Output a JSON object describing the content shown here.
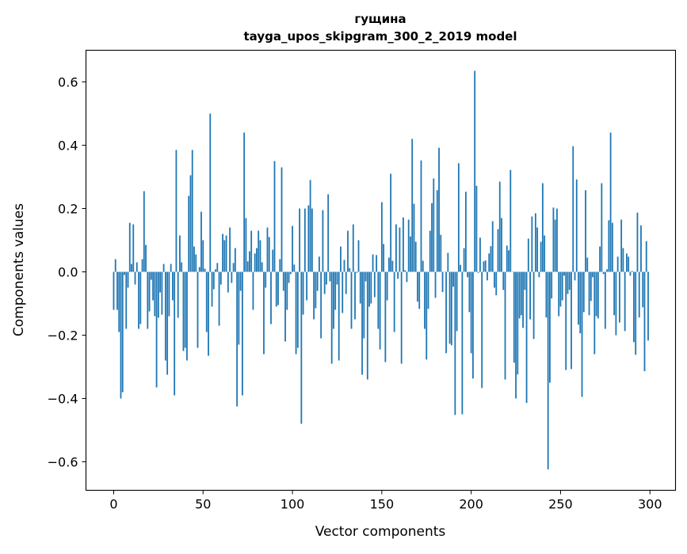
{
  "chart_data": {
    "type": "bar",
    "title": "гущина",
    "subtitle": "tayga_upos_skipgram_300_2_2019 model",
    "xlabel": "Vector components",
    "ylabel": "Components values",
    "xlim": [
      -15.5,
      314.3
    ],
    "ylim": [
      -0.69,
      0.7
    ],
    "xticks": [
      0,
      50,
      100,
      150,
      200,
      250,
      300
    ],
    "xtick_labels": [
      "0",
      "50",
      "100",
      "150",
      "200",
      "250",
      "300"
    ],
    "yticks": [
      -0.6,
      -0.4,
      -0.2,
      0.0,
      0.2,
      0.4,
      0.6
    ],
    "ytick_labels": [
      "−0.6",
      "−0.4",
      "−0.2",
      "0.0",
      "0.2",
      "0.4",
      "0.6"
    ],
    "grid": false,
    "color": "#1f77b4",
    "values": [
      -0.12,
      0.04,
      -0.12,
      -0.19,
      -0.4,
      -0.38,
      -0.01,
      -0.18,
      -0.05,
      0.155,
      0.025,
      0.15,
      -0.04,
      0.03,
      -0.18,
      -0.165,
      0.04,
      0.255,
      0.085,
      -0.18,
      -0.125,
      -0.025,
      -0.09,
      -0.14,
      -0.365,
      -0.145,
      -0.065,
      -0.135,
      0.025,
      -0.28,
      -0.325,
      -0.14,
      0.025,
      -0.09,
      -0.39,
      0.385,
      -0.145,
      0.115,
      0.03,
      -0.25,
      -0.24,
      -0.28,
      0.24,
      0.305,
      0.385,
      0.08,
      0.055,
      -0.24,
      0.015,
      0.19,
      0.1,
      0.01,
      -0.19,
      -0.265,
      0.5,
      -0.11,
      -0.055,
      0.008,
      0.028,
      -0.17,
      -0.04,
      0.12,
      0.1,
      0.115,
      -0.065,
      0.14,
      -0.035,
      0.028,
      0.075,
      -0.425,
      -0.23,
      -0.06,
      -0.39,
      0.44,
      0.17,
      0.033,
      0.065,
      0.13,
      -0.12,
      0.058,
      0.075,
      0.13,
      0.1,
      0.03,
      -0.26,
      -0.05,
      0.14,
      0.11,
      -0.165,
      0.07,
      0.35,
      -0.11,
      -0.105,
      0.04,
      0.33,
      -0.06,
      -0.22,
      -0.12,
      -0.035,
      -0.007,
      0.145,
      0.023,
      -0.26,
      -0.24,
      0.2,
      -0.48,
      -0.135,
      0.2,
      -0.09,
      0.21,
      0.29,
      0.2,
      -0.15,
      -0.115,
      -0.06,
      0.048,
      -0.21,
      0.195,
      -0.07,
      -0.04,
      0.245,
      -0.03,
      -0.29,
      -0.18,
      -0.12,
      -0.04,
      -0.28,
      0.08,
      -0.13,
      0.038,
      -0.07,
      0.13,
      0.012,
      -0.18,
      0.15,
      -0.15,
      -0.003,
      0.1,
      -0.1,
      -0.325,
      -0.21,
      -0.03,
      -0.34,
      -0.11,
      -0.1,
      0.055,
      -0.08,
      0.053,
      -0.18,
      -0.245,
      0.22,
      0.088,
      -0.285,
      -0.09,
      0.045,
      0.31,
      0.035,
      -0.19,
      0.15,
      -0.022,
      0.14,
      -0.29,
      0.172,
      0.005,
      -0.032,
      0.165,
      0.112,
      0.42,
      0.215,
      0.095,
      -0.094,
      -0.117,
      0.352,
      0.035,
      -0.18,
      -0.277,
      -0.117,
      0.13,
      0.217,
      0.295,
      -0.082,
      0.258,
      0.392,
      0.117,
      -0.064,
      0.0,
      -0.257,
      0.06,
      -0.227,
      -0.232,
      -0.047,
      -0.452,
      -0.187,
      0.343,
      0.022,
      -0.45,
      0.075,
      0.253,
      -0.017,
      -0.127,
      -0.257,
      -0.337,
      0.635,
      0.272,
      -0.003,
      0.108,
      -0.367,
      0.033,
      0.036,
      -0.027,
      0.058,
      0.081,
      0.16,
      -0.05,
      -0.074,
      0.135,
      0.285,
      0.17,
      -0.057,
      -0.34,
      0.083,
      0.068,
      0.322,
      0.0,
      -0.287,
      -0.4,
      -0.324,
      -0.147,
      -0.137,
      -0.177,
      -0.057,
      -0.414,
      0.105,
      -0.15,
      0.175,
      -0.212,
      0.185,
      0.14,
      -0.017,
      0.095,
      0.28,
      0.115,
      -0.144,
      -0.624,
      -0.35,
      -0.084,
      0.203,
      0.165,
      0.2,
      -0.14,
      -0.11,
      -0.09,
      -0.012,
      -0.31,
      -0.07,
      -0.057,
      -0.307,
      0.397,
      -0.027,
      0.292,
      -0.167,
      -0.194,
      -0.395,
      -0.127,
      0.258,
      0.045,
      -0.137,
      -0.092,
      -0.017,
      -0.26,
      -0.14,
      -0.147,
      0.08,
      0.28,
      -0.007,
      -0.18,
      0.008,
      0.163,
      0.44,
      0.155,
      -0.137,
      -0.2,
      0.048,
      -0.16,
      0.165,
      0.075,
      -0.187,
      0.058,
      0.048,
      -0.012,
      0.003,
      -0.222,
      -0.262,
      0.187,
      -0.144,
      0.147,
      -0.112,
      -0.314,
      0.097,
      -0.217
    ]
  }
}
